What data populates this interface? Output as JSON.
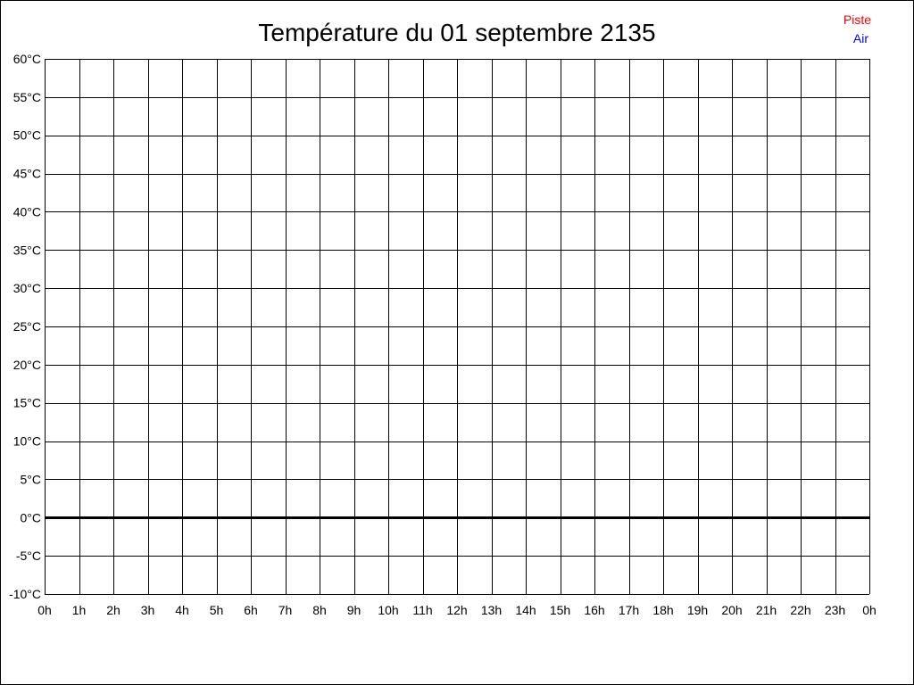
{
  "chart_data": {
    "type": "line",
    "title": "Température du 01 septembre 2135",
    "xlabel": "",
    "ylabel": "",
    "x_ticks": [
      "0h",
      "1h",
      "2h",
      "3h",
      "4h",
      "5h",
      "6h",
      "7h",
      "8h",
      "9h",
      "10h",
      "11h",
      "12h",
      "13h",
      "14h",
      "15h",
      "16h",
      "17h",
      "18h",
      "19h",
      "20h",
      "21h",
      "22h",
      "23h",
      "0h"
    ],
    "y_ticks": [
      "60°C",
      "55°C",
      "50°C",
      "45°C",
      "40°C",
      "35°C",
      "30°C",
      "25°C",
      "20°C",
      "15°C",
      "10°C",
      "5°C",
      "0°C",
      "-5°C",
      "-10°C"
    ],
    "ylim": [
      -10,
      60
    ],
    "xlim": [
      0,
      24
    ],
    "grid": true,
    "legend_placement": "top-right",
    "series": [
      {
        "name": "Piste",
        "color": "#ff0000",
        "values": []
      },
      {
        "name": "Air",
        "color": "#0000ff",
        "values": []
      }
    ]
  }
}
